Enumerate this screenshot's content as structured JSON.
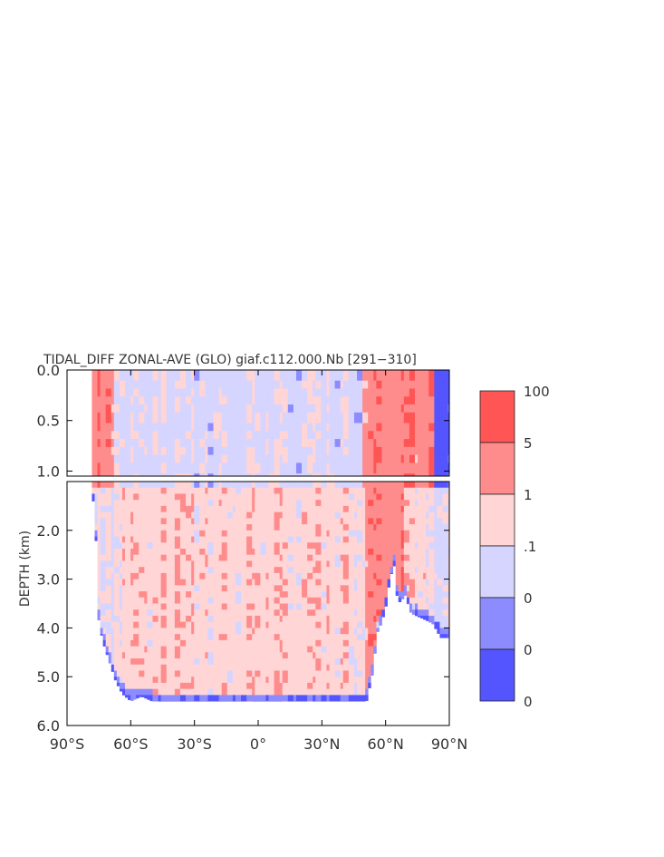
{
  "chart_data": {
    "type": "heatmap",
    "title": "TIDAL_DIFF ZONAL-AVE (GLO) giaf.c112.000.Nb [291−310]",
    "xlabel": "",
    "ylabel": "DEPTH (km)",
    "xlim": [
      -90,
      90
    ],
    "ylim": [
      6.0,
      0.0
    ],
    "upper_panel": {
      "depth_range": [
        0.0,
        1.05
      ],
      "ticks": [
        "0.0",
        "0.5",
        "1.0"
      ],
      "tick_values": [
        0.0,
        0.5,
        1.0
      ]
    },
    "lower_panel": {
      "depth_range": [
        1.0,
        6.0
      ],
      "ticks": [
        "2.0",
        "3.0",
        "4.0",
        "5.0",
        "6.0"
      ],
      "tick_values": [
        2.0,
        3.0,
        4.0,
        5.0,
        6.0
      ]
    },
    "x_ticks": [
      "90°S",
      "60°S",
      "30°S",
      "0°",
      "30°N",
      "60°N",
      "90°N"
    ],
    "x_tick_values": [
      -90,
      -60,
      -30,
      0,
      30,
      60,
      90
    ],
    "colorbar": {
      "labels": [
        "100",
        "5",
        "1",
        ".1",
        "0",
        "0",
        "0"
      ],
      "colors": [
        "#ff5555",
        "#ff8c8c",
        "#ffd5d5",
        "#d5d5ff",
        "#8c8cff",
        "#5555ff"
      ]
    },
    "bottom_profile": [
      {
        "lat": -77,
        "depth": 1.4
      },
      {
        "lat": -75,
        "depth": 3.9
      },
      {
        "lat": -73,
        "depth": 4.3
      },
      {
        "lat": -70,
        "depth": 4.7
      },
      {
        "lat": -67,
        "depth": 5.1
      },
      {
        "lat": -64,
        "depth": 5.35
      },
      {
        "lat": -60,
        "depth": 5.5
      },
      {
        "lat": -55,
        "depth": 5.4
      },
      {
        "lat": -50,
        "depth": 5.5
      },
      {
        "lat": 51,
        "depth": 5.5
      },
      {
        "lat": 54,
        "depth": 4.9
      },
      {
        "lat": 56,
        "depth": 4.1
      },
      {
        "lat": 58,
        "depth": 3.9
      },
      {
        "lat": 60,
        "depth": 3.6
      },
      {
        "lat": 62,
        "depth": 3.0
      },
      {
        "lat": 64,
        "depth": 2.7
      },
      {
        "lat": 65,
        "depth": 3.3
      },
      {
        "lat": 67,
        "depth": 3.5
      },
      {
        "lat": 69,
        "depth": 3.3
      },
      {
        "lat": 72,
        "depth": 3.7
      },
      {
        "lat": 77,
        "depth": 3.8
      },
      {
        "lat": 82,
        "depth": 3.9
      },
      {
        "lat": 86,
        "depth": 4.2
      },
      {
        "lat": 90,
        "depth": 4.2
      }
    ],
    "surface_start_lat": -78,
    "field_note_levels": {
      "high": 100,
      "mid_high": 5,
      "mid": 1,
      "low": 0.1,
      "zero": 0
    }
  }
}
